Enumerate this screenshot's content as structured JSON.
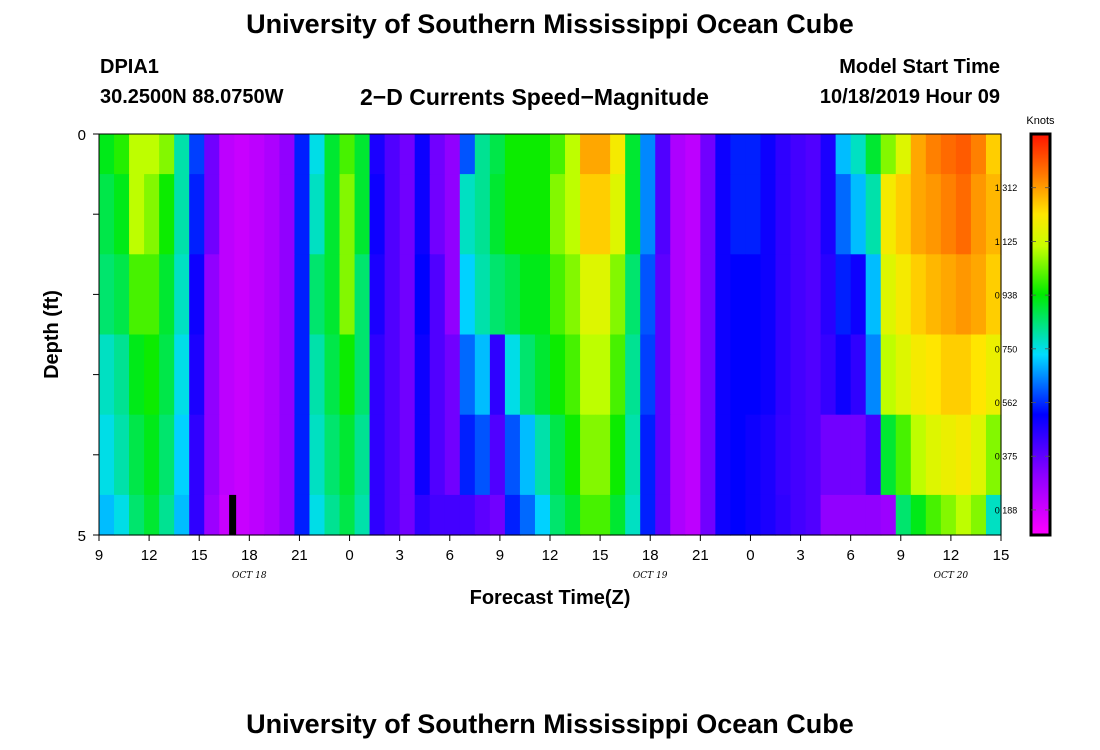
{
  "page": {
    "title_top": "University of Southern Mississippi Ocean Cube",
    "title_bottom": "University of Southern Mississippi Ocean Cube",
    "station_id": "DPIA1",
    "station_coords": "30.2500N 88.0750W",
    "model_label": "Model Start Time",
    "model_time": "10/18/2019 Hour 09"
  },
  "chart_data": {
    "type": "heatmap",
    "title": "2−D Currents Speed−Magnitude",
    "xlabel": "Forecast Time(Z)",
    "ylabel": "Depth (ft)",
    "x_tick_labels": [
      "9",
      "12",
      "15",
      "18",
      "21",
      "0",
      "3",
      "6",
      "9",
      "12",
      "15",
      "18",
      "21",
      "0",
      "3",
      "6",
      "9",
      "12",
      "15"
    ],
    "x_date_labels": [
      {
        "label": "OCT 18",
        "under_tick": 3
      },
      {
        "label": "OCT 19",
        "under_tick": 11
      },
      {
        "label": "OCT 20",
        "under_tick": 17
      }
    ],
    "x_range_hours": [
      0,
      54
    ],
    "x_start_hour_utc": 9,
    "y_tick_labels": [
      "0",
      "5"
    ],
    "y_range": [
      0,
      5
    ],
    "y_minor_ticks": [
      1,
      2,
      3,
      4
    ],
    "legend": {
      "title": "Knots",
      "ticks": [
        "0.188",
        "0.375",
        "0.562",
        "0.750",
        "0.938",
        "1.125",
        "1.312"
      ],
      "tick_values": [
        0.1875,
        0.375,
        0.5625,
        0.75,
        0.9375,
        1.125,
        1.3125
      ],
      "range": [
        0.1,
        1.5
      ],
      "placement": "right"
    },
    "marker": {
      "hour": 8,
      "depth_range": [
        4.5,
        5.0
      ],
      "color": "#000000"
    },
    "depth_layers": [
      0,
      0.5,
      1.5,
      2.5,
      3.5,
      4.5,
      5.0
    ],
    "speeds": [
      [
        0.92,
        0.97,
        1.1,
        1.1,
        1.05,
        0.8,
        0.58,
        0.35,
        0.22,
        0.2,
        0.22,
        0.25,
        0.3,
        0.55,
        0.75,
        0.9,
        1.0,
        0.9,
        0.48,
        0.4,
        0.35,
        0.5,
        0.35,
        0.3,
        0.6,
        0.82,
        0.88,
        0.95,
        0.95,
        0.95,
        1.0,
        1.1,
        1.3,
        1.3,
        1.2,
        0.9,
        0.65,
        0.4,
        0.25,
        0.22,
        0.35,
        0.5,
        0.55,
        0.55,
        0.5,
        0.45,
        0.42,
        0.4,
        0.48,
        0.7,
        0.78,
        0.9,
        1.05,
        1.15,
        1.3,
        1.35,
        1.38,
        1.4,
        1.35,
        1.25
      ],
      [
        0.88,
        0.92,
        1.1,
        1.05,
        0.95,
        0.8,
        0.55,
        0.35,
        0.22,
        0.2,
        0.22,
        0.25,
        0.3,
        0.55,
        0.78,
        0.9,
        1.05,
        0.9,
        0.5,
        0.4,
        0.35,
        0.5,
        0.35,
        0.3,
        0.78,
        0.82,
        0.9,
        0.95,
        0.95,
        0.95,
        1.05,
        1.1,
        1.25,
        1.25,
        1.15,
        0.9,
        0.65,
        0.4,
        0.25,
        0.22,
        0.35,
        0.5,
        0.55,
        0.55,
        0.5,
        0.45,
        0.42,
        0.4,
        0.48,
        0.62,
        0.7,
        0.8,
        1.2,
        1.25,
        1.3,
        1.32,
        1.35,
        1.38,
        1.32,
        1.28
      ],
      [
        0.85,
        0.88,
        1.0,
        1.0,
        0.9,
        0.78,
        0.5,
        0.3,
        0.22,
        0.2,
        0.22,
        0.25,
        0.3,
        0.55,
        0.85,
        0.9,
        1.05,
        0.85,
        0.48,
        0.4,
        0.35,
        0.52,
        0.4,
        0.3,
        0.72,
        0.8,
        0.85,
        0.88,
        0.92,
        0.92,
        1.0,
        1.05,
        1.15,
        1.15,
        1.05,
        0.85,
        0.6,
        0.38,
        0.25,
        0.22,
        0.35,
        0.5,
        0.52,
        0.52,
        0.5,
        0.45,
        0.42,
        0.4,
        0.46,
        0.55,
        0.5,
        0.7,
        1.15,
        1.2,
        1.25,
        1.28,
        1.3,
        1.32,
        1.3,
        1.25
      ],
      [
        0.78,
        0.82,
        0.92,
        0.95,
        0.88,
        0.75,
        0.48,
        0.3,
        0.22,
        0.2,
        0.22,
        0.25,
        0.3,
        0.55,
        0.8,
        0.88,
        0.95,
        0.85,
        0.45,
        0.4,
        0.35,
        0.5,
        0.4,
        0.35,
        0.62,
        0.7,
        0.45,
        0.75,
        0.85,
        0.9,
        0.95,
        1.0,
        1.1,
        1.1,
        1.0,
        0.82,
        0.58,
        0.38,
        0.25,
        0.22,
        0.35,
        0.5,
        0.52,
        0.52,
        0.5,
        0.45,
        0.42,
        0.4,
        0.44,
        0.5,
        0.45,
        0.65,
        1.1,
        1.15,
        1.2,
        1.22,
        1.25,
        1.25,
        1.22,
        1.18
      ],
      [
        0.75,
        0.8,
        0.88,
        0.92,
        0.85,
        0.72,
        0.45,
        0.3,
        0.22,
        0.2,
        0.22,
        0.25,
        0.3,
        0.55,
        0.78,
        0.85,
        0.9,
        0.82,
        0.45,
        0.4,
        0.35,
        0.5,
        0.4,
        0.35,
        0.55,
        0.6,
        0.4,
        0.6,
        0.7,
        0.8,
        0.88,
        0.95,
        1.05,
        1.05,
        0.95,
        0.8,
        0.55,
        0.38,
        0.25,
        0.22,
        0.35,
        0.5,
        0.52,
        0.5,
        0.48,
        0.44,
        0.42,
        0.4,
        0.35,
        0.35,
        0.35,
        0.42,
        0.9,
        1.0,
        1.1,
        1.15,
        1.18,
        1.2,
        1.15,
        1.05
      ],
      [
        0.7,
        0.75,
        0.85,
        0.9,
        0.82,
        0.7,
        0.45,
        0.28,
        0.2,
        0.2,
        0.22,
        0.25,
        0.3,
        0.55,
        0.75,
        0.82,
        0.88,
        0.8,
        0.45,
        0.4,
        0.35,
        0.45,
        0.42,
        0.42,
        0.42,
        0.38,
        0.35,
        0.55,
        0.62,
        0.72,
        0.85,
        0.9,
        1.0,
        1.0,
        0.9,
        0.78,
        0.55,
        0.38,
        0.25,
        0.22,
        0.35,
        0.5,
        0.52,
        0.5,
        0.48,
        0.45,
        0.42,
        0.4,
        0.3,
        0.3,
        0.3,
        0.3,
        0.28,
        0.85,
        0.92,
        1.0,
        1.05,
        1.1,
        1.05,
        0.78
      ]
    ]
  }
}
